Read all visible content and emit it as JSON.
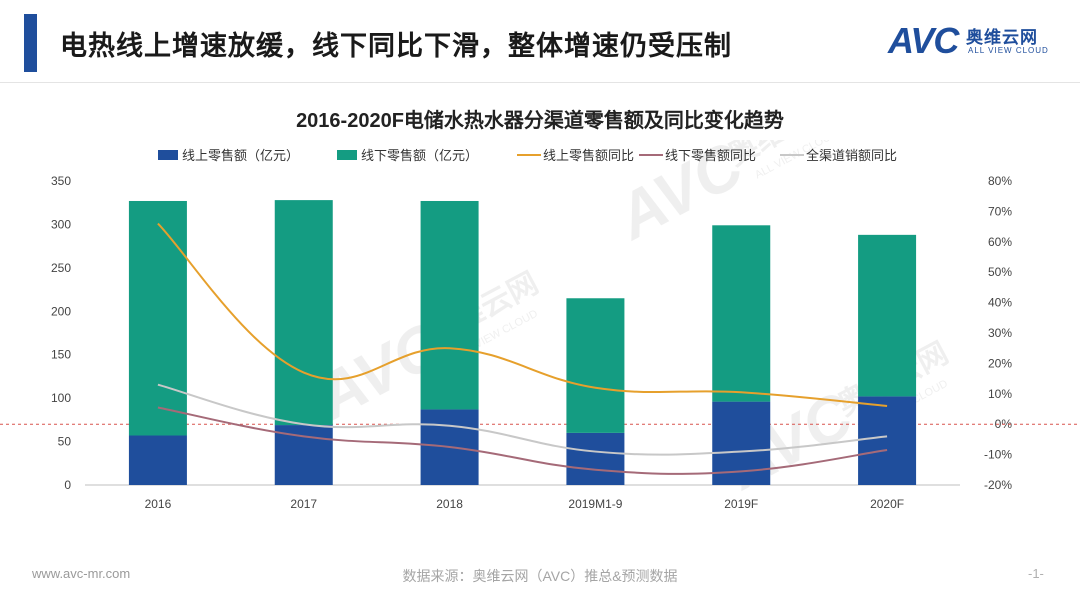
{
  "header": {
    "title": "电热线上增速放缓，线下同比下滑，整体增速仍受压制",
    "logo_text": "AVC",
    "logo_cn": "奥维云网",
    "logo_en": "ALL VIEW CLOUD"
  },
  "watermark": {
    "cn": "奥维云网",
    "en": "ALL VIEW CLOUD"
  },
  "chart_data": {
    "type": "bar",
    "title": "2016-2020F电储水热水器分渠道零售额及同比变化趋势",
    "categories": [
      "2016",
      "2017",
      "2018",
      "2019M1-9",
      "2019F",
      "2020F"
    ],
    "stacked": true,
    "y_left": {
      "ylim": [
        0,
        350
      ],
      "ticks": [
        "0",
        "50",
        "100",
        "150",
        "200",
        "250",
        "300",
        "350"
      ]
    },
    "y_right": {
      "ylim": [
        -0.2,
        0.8
      ],
      "ticks": [
        "-20%",
        "-10%",
        "0%",
        "10%",
        "20%",
        "30%",
        "40%",
        "50%",
        "60%",
        "70%",
        "80%"
      ]
    },
    "series": [
      {
        "name": "线上零售额（亿元）",
        "kind": "bar",
        "axis": "left",
        "color": "#1f4e9c",
        "values": [
          57,
          69,
          87,
          60,
          96,
          102
        ]
      },
      {
        "name": "线下零售额（亿元）",
        "kind": "bar",
        "axis": "left",
        "color": "#149c82",
        "values": [
          270,
          259,
          240,
          155,
          203,
          186
        ]
      },
      {
        "name": "线上零售额同比",
        "kind": "line",
        "axis": "right",
        "color": "#e6a02c",
        "values": [
          0.66,
          0.17,
          0.25,
          0.12,
          0.105,
          0.06
        ]
      },
      {
        "name": "线下零售额同比",
        "kind": "line",
        "axis": "right",
        "color": "#a56a78",
        "values": [
          0.055,
          -0.04,
          -0.075,
          -0.15,
          -0.155,
          -0.085
        ]
      },
      {
        "name": "全渠道销额同比",
        "kind": "line",
        "axis": "right",
        "color": "#c8c8c8",
        "values": [
          0.13,
          0.0,
          -0.005,
          -0.09,
          -0.09,
          -0.04
        ]
      }
    ]
  },
  "footer": {
    "url": "www.avc-mr.com",
    "source": "数据来源：奥维云网（AVC）推总&预测数据",
    "page": "-1-"
  }
}
